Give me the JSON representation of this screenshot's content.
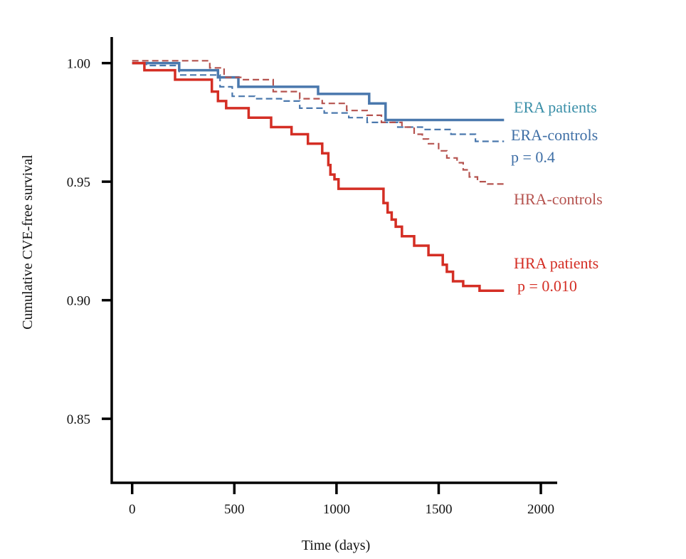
{
  "chart_data": {
    "type": "line",
    "step": true,
    "xlabel": "Time (days)",
    "ylabel": "Cumulative CVE-free survival",
    "xlim": [
      -100,
      2080
    ],
    "ylim": [
      0.823,
      1.011
    ],
    "xticks": [
      0,
      500,
      1000,
      1500,
      2000
    ],
    "xtick_labels": [
      "0",
      "500",
      "1000",
      "1500",
      "2000"
    ],
    "yticks": [
      0.85,
      0.9,
      0.95,
      1.0
    ],
    "ytick_labels": [
      "0.85",
      "0.90",
      "0.95",
      "1.00"
    ],
    "grid": false,
    "series": [
      {
        "name": "ERA patients",
        "color": "#4a78ad",
        "dash": "solid",
        "x": [
          0,
          230,
          420,
          520,
          910,
          1160,
          1240,
          1820
        ],
        "y": [
          1.0,
          0.997,
          0.994,
          0.99,
          0.987,
          0.983,
          0.976,
          0.976
        ]
      },
      {
        "name": "ERA-controls",
        "color": "#4a78ad",
        "dash": "dashed",
        "x": [
          0,
          70,
          230,
          430,
          490,
          600,
          730,
          820,
          940,
          1060,
          1150,
          1300,
          1420,
          1560,
          1680,
          1820
        ],
        "y": [
          1.0,
          0.999,
          0.995,
          0.99,
          0.986,
          0.985,
          0.984,
          0.981,
          0.979,
          0.977,
          0.975,
          0.973,
          0.972,
          0.97,
          0.967,
          0.967
        ]
      },
      {
        "name": "HRA-controls",
        "color": "#b5534f",
        "dash": "dashed",
        "x": [
          0,
          380,
          450,
          540,
          690,
          820,
          930,
          1050,
          1150,
          1220,
          1320,
          1380,
          1420,
          1450,
          1500,
          1540,
          1590,
          1620,
          1650,
          1690,
          1740,
          1820
        ],
        "y": [
          1.001,
          0.998,
          0.994,
          0.993,
          0.988,
          0.985,
          0.983,
          0.98,
          0.978,
          0.975,
          0.973,
          0.97,
          0.968,
          0.966,
          0.963,
          0.96,
          0.958,
          0.955,
          0.952,
          0.95,
          0.949,
          0.949
        ]
      },
      {
        "name": "HRA patients",
        "color": "#d42e24",
        "dash": "solid",
        "x": [
          0,
          60,
          210,
          390,
          420,
          460,
          570,
          680,
          780,
          860,
          930,
          960,
          970,
          990,
          1010,
          1230,
          1250,
          1270,
          1290,
          1320,
          1380,
          1450,
          1520,
          1540,
          1570,
          1620,
          1700,
          1820
        ],
        "y": [
          1.0,
          0.997,
          0.993,
          0.988,
          0.984,
          0.981,
          0.977,
          0.973,
          0.97,
          0.966,
          0.962,
          0.957,
          0.953,
          0.951,
          0.947,
          0.941,
          0.937,
          0.934,
          0.931,
          0.927,
          0.923,
          0.919,
          0.915,
          0.912,
          0.908,
          0.906,
          0.904,
          0.904
        ]
      }
    ],
    "annotations": [
      {
        "name": "era-patients-label",
        "text": "ERA patients",
        "color": "#3a8fa8"
      },
      {
        "name": "era-controls-label",
        "text": "ERA-controls",
        "color": "#3f6fa6"
      },
      {
        "name": "era-p-value",
        "text": "p = 0.4",
        "color": "#3f6fa6"
      },
      {
        "name": "hra-controls-label",
        "text": "HRA-controls",
        "color": "#b5534f"
      },
      {
        "name": "hra-patients-label",
        "text": "HRA patients",
        "color": "#d42e24"
      },
      {
        "name": "hra-p-value",
        "text": "p = 0.010",
        "color": "#d42e24"
      }
    ]
  }
}
